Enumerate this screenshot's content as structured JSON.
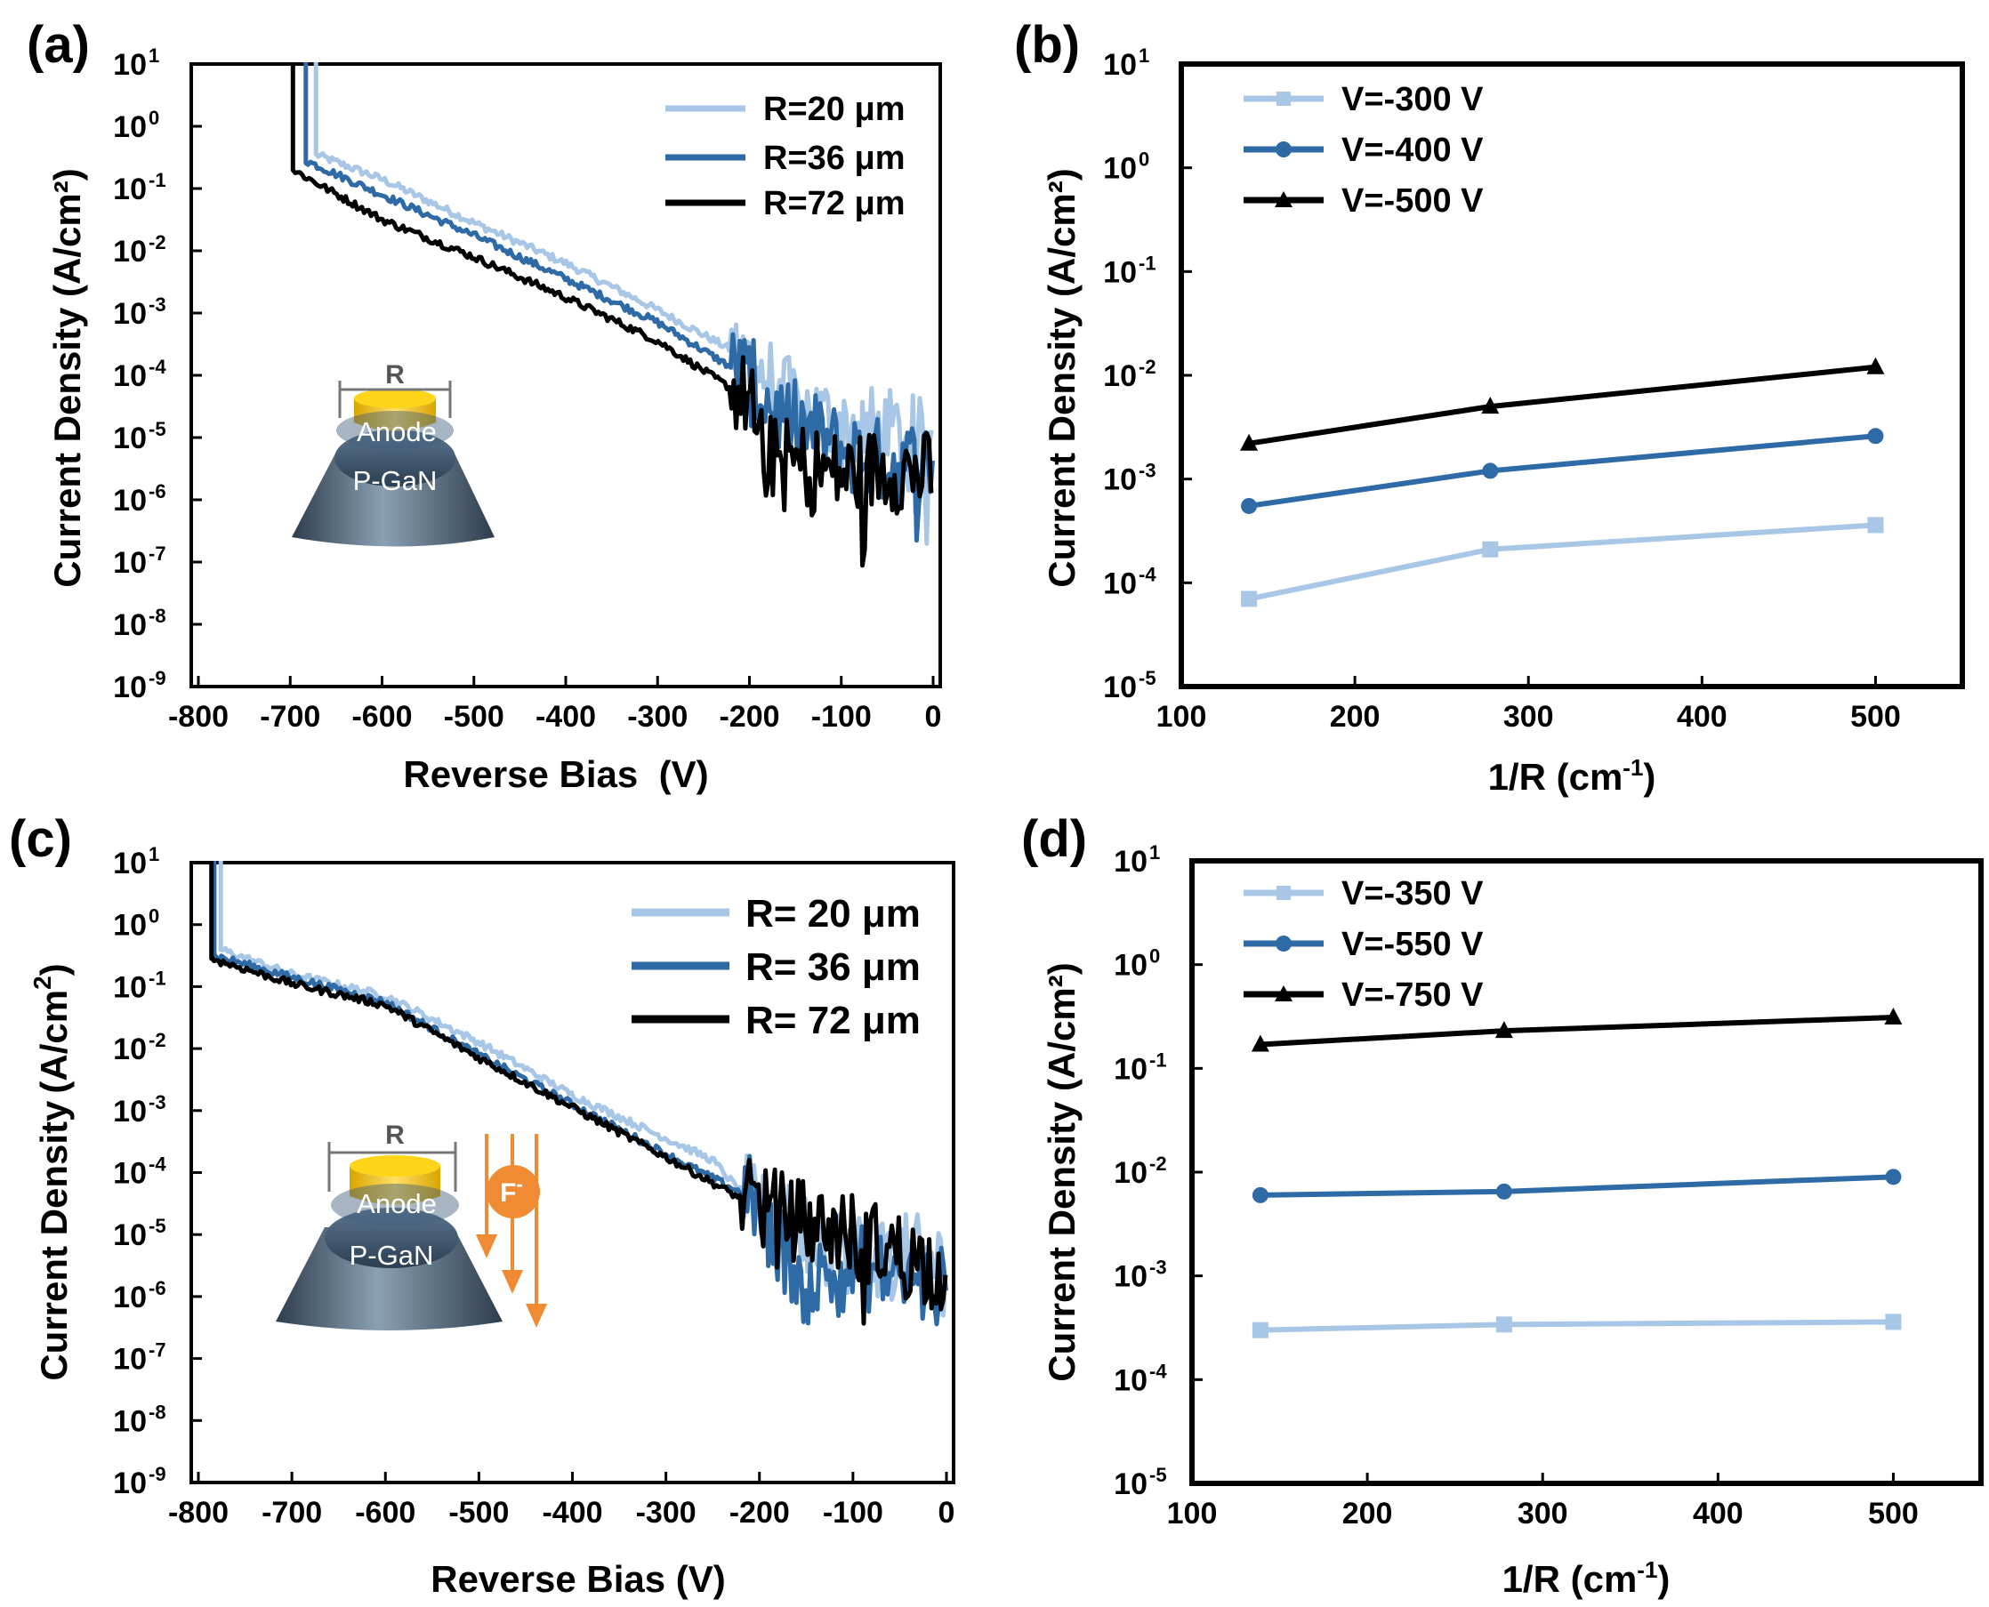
{
  "colors": {
    "light_blue": "#a8c6e5",
    "mid_blue": "#2e6aa6",
    "black": "#000000",
    "anode": "#f6c915",
    "body_dark": "#3e5367",
    "fluorine": "#f08a33"
  },
  "chart_data": [
    {
      "panel": "(a)",
      "type": "line",
      "xlabel": "Reverse Bias  (V)",
      "ylabel": "Current Density (A/cm²)",
      "xlim": [
        -800,
        0
      ],
      "ylim_log10": [
        -9,
        1
      ],
      "x_ticks": [
        "-800",
        "-700",
        "-600",
        "-500",
        "-400",
        "-300",
        "-200",
        "-100",
        "0"
      ],
      "y_ticks": [
        "10",
        "10",
        "10",
        "10",
        "10",
        "10",
        "10",
        "10",
        "10",
        "10",
        "10"
      ],
      "y_tick_exps": [
        "-9",
        "-8",
        "-7",
        "-6",
        "-5",
        "-4",
        "-3",
        "-2",
        "-1",
        "0",
        "1"
      ],
      "series": [
        {
          "name": "R=20 μm",
          "color": "#a8c6e5",
          "breakdown_v": -672,
          "knee_log": -0.45,
          "points": [
            [
              -672,
              -0.45
            ],
            [
              -600,
              -0.85
            ],
            [
              -500,
              -1.55
            ],
            [
              -400,
              -2.2
            ],
            [
              -300,
              -2.95
            ],
            [
              -200,
              -3.75
            ],
            [
              -150,
              -4.5
            ],
            [
              -100,
              -4.8
            ],
            [
              -50,
              -4.9
            ],
            [
              0,
              -5.1
            ]
          ]
        },
        {
          "name": "R=36 μm",
          "color": "#2e6aa6",
          "breakdown_v": -683,
          "knee_log": -0.55,
          "points": [
            [
              -683,
              -0.55
            ],
            [
              -600,
              -1.1
            ],
            [
              -500,
              -1.75
            ],
            [
              -400,
              -2.45
            ],
            [
              -300,
              -3.15
            ],
            [
              -200,
              -4.05
            ],
            [
              -170,
              -4.6
            ],
            [
              -100,
              -5.2
            ],
            [
              -50,
              -5.4
            ],
            [
              0,
              -5.4
            ]
          ]
        },
        {
          "name": "R=72 μm",
          "color": "#000000",
          "breakdown_v": -697,
          "knee_log": -0.7,
          "points": [
            [
              -697,
              -0.7
            ],
            [
              -600,
              -1.5
            ],
            [
              -500,
              -2.1
            ],
            [
              -400,
              -2.75
            ],
            [
              -300,
              -3.45
            ],
            [
              -200,
              -4.4
            ],
            [
              -180,
              -5.3
            ],
            [
              -100,
              -5.6
            ],
            [
              -50,
              -5.5
            ],
            [
              0,
              -5.6
            ]
          ]
        }
      ],
      "legend": [
        "R=20 μm",
        "R=36 μm",
        "R=72 μm"
      ],
      "inset": {
        "dimension": "R",
        "top_label": "Anode",
        "bottom_label": "P-GaN"
      }
    },
    {
      "panel": "(b)",
      "type": "line",
      "xlabel": "1/R (cm",
      "xlabel_exp": "-1",
      "xlabel_close": ")",
      "ylabel": "Current Density (A/cm²)",
      "xlim": [
        100,
        550
      ],
      "ylim_log10": [
        -5,
        1
      ],
      "x_ticks": [
        "100",
        "200",
        "300",
        "400",
        "500"
      ],
      "y_ticks": [
        "10",
        "10",
        "10",
        "10",
        "10",
        "10",
        "10"
      ],
      "y_tick_exps": [
        "-5",
        "-4",
        "-3",
        "-2",
        "-1",
        "0",
        "1"
      ],
      "x": [
        139,
        278,
        500
      ],
      "series": [
        {
          "name": "V=-300 V",
          "color": "#a8c6e5",
          "marker": "square",
          "values": [
            7e-05,
            0.00021,
            0.00036
          ]
        },
        {
          "name": "V=-400 V",
          "color": "#2e6aa6",
          "marker": "circle",
          "values": [
            0.00055,
            0.0012,
            0.0026
          ]
        },
        {
          "name": "V=-500 V",
          "color": "#000000",
          "marker": "triangle",
          "values": [
            0.0022,
            0.005,
            0.012
          ]
        }
      ],
      "legend": [
        "V=-300 V",
        "V=-400 V",
        "V=-500 V"
      ]
    },
    {
      "panel": "(c)",
      "type": "line",
      "xlabel": "Reverse Bias (V)",
      "ylabel": "Current Density",
      "ylabel_unit": "(A/cm",
      "ylabel_exp": "2",
      "ylabel_close": ")",
      "xlim": [
        -800,
        0
      ],
      "ylim_log10": [
        -9,
        1
      ],
      "x_ticks": [
        "-800",
        "-700",
        "-600",
        "-500",
        "-400",
        "-300",
        "-200",
        "-100",
        "0"
      ],
      "y_ticks": [
        "10",
        "10",
        "10",
        "10",
        "10",
        "10",
        "10",
        "10",
        "10",
        "10",
        "10"
      ],
      "y_tick_exps": [
        "-9",
        "-8",
        "-7",
        "-6",
        "-5",
        "-4",
        "-3",
        "-2",
        "-1",
        "0",
        "1"
      ],
      "series": [
        {
          "name": "R= 20 μm",
          "color": "#a8c6e5",
          "breakdown_v": -776,
          "knee_log": -0.4,
          "points": [
            [
              -776,
              -0.4
            ],
            [
              -700,
              -0.8
            ],
            [
              -600,
              -1.15
            ],
            [
              -500,
              -1.9
            ],
            [
              -400,
              -2.75
            ],
            [
              -300,
              -3.45
            ],
            [
              -250,
              -3.8
            ],
            [
              -200,
              -4.65
            ],
            [
              -100,
              -5.3
            ],
            [
              0,
              -5.4
            ]
          ]
        },
        {
          "name": "R= 36 μm",
          "color": "#2e6aa6",
          "breakdown_v": -783,
          "knee_log": -0.5,
          "points": [
            [
              -783,
              -0.5
            ],
            [
              -700,
              -0.85
            ],
            [
              -600,
              -1.25
            ],
            [
              -500,
              -2.1
            ],
            [
              -400,
              -2.9
            ],
            [
              -300,
              -3.7
            ],
            [
              -210,
              -4.4
            ],
            [
              -150,
              -5.8
            ],
            [
              -100,
              -5.5
            ],
            [
              0,
              -5.9
            ]
          ]
        },
        {
          "name": "R= 72 μm",
          "color": "#000000",
          "breakdown_v": -786,
          "knee_log": -0.55,
          "points": [
            [
              -786,
              -0.55
            ],
            [
              -700,
              -0.95
            ],
            [
              -600,
              -1.3
            ],
            [
              -500,
              -2.15
            ],
            [
              -400,
              -2.95
            ],
            [
              -300,
              -3.75
            ],
            [
              -210,
              -4.5
            ],
            [
              -150,
              -4.8
            ],
            [
              -100,
              -5.0
            ],
            [
              0,
              -5.6
            ]
          ]
        }
      ],
      "legend": [
        "R= 20 μm",
        "R= 36 μm",
        "R= 72 μm"
      ],
      "inset": {
        "dimension": "R",
        "top_label": "Anode",
        "bottom_label": "P-GaN",
        "ion_label": "F",
        "ion_charge": "-"
      }
    },
    {
      "panel": "(d)",
      "type": "line",
      "xlabel": "1/R (cm",
      "xlabel_exp": "-1",
      "xlabel_close": ")",
      "ylabel": "Current Density (A/cm²)",
      "xlim": [
        100,
        550
      ],
      "ylim_log10": [
        -5,
        1
      ],
      "x_ticks": [
        "100",
        "200",
        "300",
        "400",
        "500"
      ],
      "y_ticks": [
        "10",
        "10",
        "10",
        "10",
        "10",
        "10",
        "10"
      ],
      "y_tick_exps": [
        "-5",
        "-4",
        "-3",
        "-2",
        "-1",
        "0",
        "1"
      ],
      "x": [
        139,
        278,
        500
      ],
      "series": [
        {
          "name": "V=-350 V",
          "color": "#a8c6e5",
          "marker": "square",
          "values": [
            0.0003,
            0.00034,
            0.00036
          ]
        },
        {
          "name": "V=-550 V",
          "color": "#2e6aa6",
          "marker": "circle",
          "values": [
            0.006,
            0.0065,
            0.009
          ]
        },
        {
          "name": "V=-750 V",
          "color": "#000000",
          "marker": "triangle",
          "values": [
            0.17,
            0.23,
            0.31
          ]
        }
      ],
      "legend": [
        "V=-350 V",
        "V=-550 V",
        "V=-750 V"
      ]
    }
  ]
}
